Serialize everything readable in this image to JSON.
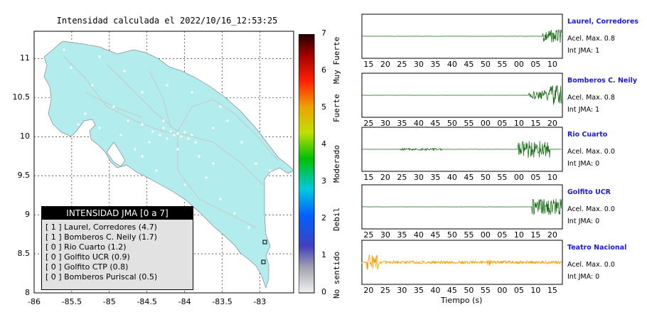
{
  "title": "Intensidad calculada el 2022/10/16_12:53:25",
  "map": {
    "xticks": [
      "-86",
      "-85.5",
      "-85",
      "-84.5",
      "-84",
      "-83.5",
      "-83"
    ],
    "yticks": [
      "11",
      "10.5",
      "10",
      "9.5",
      "9",
      "8.5",
      "8"
    ]
  },
  "colorbar": {
    "values": [
      "0",
      "1",
      "2",
      "3",
      "4",
      "5",
      "6",
      "7"
    ],
    "labels": [
      "No sentido",
      "Debil",
      "Moderado",
      "Fuerte",
      "Muy Fuerte"
    ]
  },
  "legend": {
    "title": "INTENSIDAD JMA [0 a 7]",
    "items": [
      "[ 1 ]  Laurel, Corredores (4.7)",
      "[ 1 ]  Bomberos C. Neily (1.7)",
      "[ 0 ]  Rio Cuarto (1.2)",
      "[ 0 ]  Golfito UCR (0.9)",
      "[ 0 ]  Golfito CTP (0.8)",
      "[ 0 ]  Bomberos Puriscal (0.5)"
    ]
  },
  "stations": [
    {
      "name": "Laurel, Corredores",
      "acel": "Acel. Max. 0.8",
      "jma": "Int JMA: 1",
      "ticks": [
        "15",
        "20",
        "25",
        "30",
        "35",
        "40",
        "45",
        "50",
        "55",
        "00",
        "05",
        "10"
      ],
      "color": "#1a6e1a"
    },
    {
      "name": "Bomberos C. Neily",
      "acel": "Acel. Max. 0.8",
      "jma": "Int JMA: 1",
      "ticks": [
        "25",
        "30",
        "35",
        "40",
        "45",
        "50",
        "55",
        "00",
        "05",
        "10",
        "15",
        "20"
      ],
      "color": "#1a6e1a"
    },
    {
      "name": "Rio Cuarto",
      "acel": "Acel. Max. 0.0",
      "jma": "Int JMA: 0",
      "ticks": [
        "15",
        "20",
        "25",
        "30",
        "35",
        "40",
        "45",
        "50",
        "55",
        "00",
        "05",
        "10"
      ],
      "color": "#1a6e1a"
    },
    {
      "name": "Golfito UCR",
      "acel": "Acel. Max. 0.0",
      "jma": "Int JMA: 0",
      "ticks": [
        "25",
        "30",
        "35",
        "40",
        "45",
        "50",
        "55",
        "00",
        "05",
        "10",
        "15",
        "20"
      ],
      "color": "#1a6e1a"
    },
    {
      "name": "Teatro Nacional",
      "acel": "Acel. Max. 0.0",
      "jma": "Int JMA: 0",
      "ticks": [
        "20",
        "25",
        "30",
        "35",
        "40",
        "45",
        "50",
        "55",
        "00",
        "05",
        "10",
        "15"
      ],
      "color": "#f0a000"
    }
  ],
  "xaxis_title": "Tiempo (s)",
  "chart_data": {
    "type": "scatter",
    "xlabel": "",
    "ylabel": "",
    "xlim": [
      -86,
      -82.55
    ],
    "ylim": [
      8,
      11.35
    ],
    "stations_jma_intensity": [
      {
        "station": "Laurel, Corredores",
        "jma": 1,
        "value": 4.7
      },
      {
        "station": "Bomberos C. Neily",
        "jma": 1,
        "value": 1.7
      },
      {
        "station": "Rio Cuarto",
        "jma": 0,
        "value": 1.2
      },
      {
        "station": "Golfito UCR",
        "jma": 0,
        "value": 0.9
      },
      {
        "station": "Golfito CTP",
        "jma": 0,
        "value": 0.8
      },
      {
        "station": "Bomberos Puriscal",
        "jma": 0,
        "value": 0.5
      }
    ],
    "colorbar_range": [
      0,
      7
    ]
  }
}
